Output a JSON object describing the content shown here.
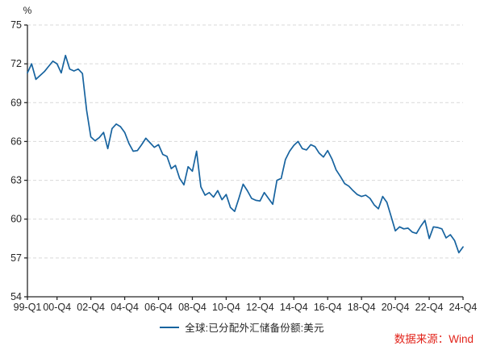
{
  "chart_data": {
    "type": "line",
    "title": "",
    "unit_label": "%",
    "xlabel": "",
    "ylabel": "%",
    "ylim": [
      54,
      75
    ],
    "grid": "horizontal-dashed",
    "legend_position": "bottom-center",
    "y_ticks": [
      75,
      72,
      69,
      66,
      63,
      60,
      57,
      54
    ],
    "x_tick_labels": [
      "99-Q1",
      "00-Q4",
      "02-Q4",
      "04-Q4",
      "06-Q4",
      "08-Q4",
      "10-Q4",
      "12-Q4",
      "14-Q4",
      "16-Q4",
      "18-Q4",
      "20-Q4",
      "22-Q4",
      "24-Q4"
    ],
    "x_tick_indices": [
      0,
      7,
      15,
      23,
      31,
      39,
      47,
      55,
      63,
      71,
      79,
      87,
      95,
      103
    ],
    "x_range_note": "quarterly from 1999-Q1 to 2024-Q4",
    "series": [
      {
        "name": "全球:已分配外汇储备份额:美元",
        "color": "#17639f",
        "values": [
          71.3,
          72.0,
          70.8,
          71.1,
          71.4,
          71.8,
          72.2,
          72.0,
          71.3,
          72.65,
          71.6,
          71.45,
          71.6,
          71.25,
          68.4,
          66.35,
          66.05,
          66.3,
          66.7,
          65.45,
          67.0,
          67.35,
          67.15,
          66.7,
          65.85,
          65.25,
          65.3,
          65.75,
          66.25,
          65.9,
          65.55,
          65.75,
          65.0,
          64.85,
          63.9,
          64.15,
          63.15,
          62.65,
          64.05,
          63.7,
          65.25,
          62.5,
          61.85,
          62.05,
          61.7,
          62.2,
          61.5,
          61.9,
          60.9,
          60.6,
          61.6,
          62.7,
          62.2,
          61.6,
          61.45,
          61.4,
          62.05,
          61.6,
          61.15,
          63.0,
          63.15,
          64.6,
          65.25,
          65.7,
          66.0,
          65.45,
          65.35,
          65.75,
          65.6,
          65.1,
          64.8,
          65.3,
          64.65,
          63.8,
          63.3,
          62.75,
          62.55,
          62.2,
          61.9,
          61.75,
          61.85,
          61.6,
          61.1,
          60.8,
          61.75,
          61.3,
          60.2,
          59.1,
          59.4,
          59.25,
          59.3,
          59.0,
          58.9,
          59.45,
          59.9,
          58.5,
          59.4,
          59.35,
          59.25,
          58.55,
          58.8,
          58.35,
          57.4,
          57.85
        ]
      }
    ]
  },
  "axis": {
    "unit": "%"
  },
  "legend": {
    "label": "全球:已分配外汇储备份额:美元"
  },
  "source": {
    "label": "数据来源：Wind",
    "color": "#e2231a"
  },
  "colors": {
    "line": "#17639f",
    "grid": "#d9d9d9",
    "axis": "#262626",
    "tick_text": "#262626",
    "source_red": "#e2231a",
    "background": "#ffffff"
  }
}
